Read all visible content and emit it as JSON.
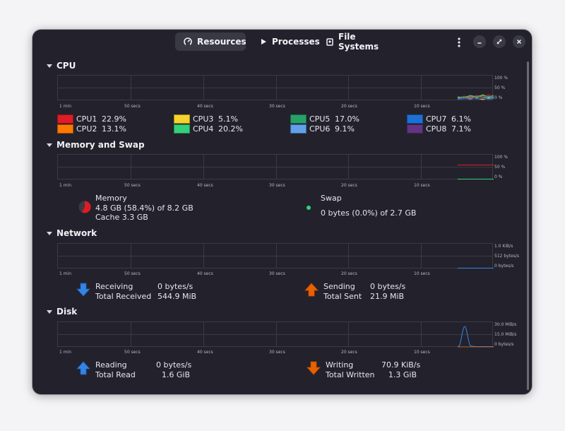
{
  "tabs": [
    {
      "label": "Resources",
      "icon": "gauge-icon",
      "active": true
    },
    {
      "label": "Processes",
      "icon": "play-icon",
      "active": false
    },
    {
      "label": "File Systems",
      "icon": "disk-icon",
      "active": false
    }
  ],
  "graph_time_labels": [
    "1 min",
    "50 secs",
    "40 secs",
    "30 secs",
    "20 secs",
    "10 secs"
  ],
  "cpu": {
    "title": "CPU",
    "y_labels": [
      "100 %",
      "50 %",
      "0 %"
    ],
    "cores": [
      {
        "name": "CPU1",
        "value": "22.9%",
        "color": "#e01b24"
      },
      {
        "name": "CPU2",
        "value": "13.1%",
        "color": "#ff7800"
      },
      {
        "name": "CPU3",
        "value": "5.1%",
        "color": "#f6d32d"
      },
      {
        "name": "CPU4",
        "value": "20.2%",
        "color": "#33d17a"
      },
      {
        "name": "CPU5",
        "value": "17.0%",
        "color": "#26a269"
      },
      {
        "name": "CPU6",
        "value": "9.1%",
        "color": "#62a0ea"
      },
      {
        "name": "CPU7",
        "value": "6.1%",
        "color": "#1c71d8"
      },
      {
        "name": "CPU8",
        "value": "7.1%",
        "color": "#613583"
      }
    ]
  },
  "memory": {
    "title": "Memory and Swap",
    "y_labels": [
      "100 %",
      "50 %",
      "0 %"
    ],
    "memory_label": "Memory",
    "memory_usage": "4.8 GB (58.4%) of 8.2 GB",
    "cache": "Cache 3.3 GB",
    "memory_color": "#e01b24",
    "memory_fraction": 0.584,
    "swap_label": "Swap",
    "swap_usage": "0 bytes (0.0%) of 2.7 GB",
    "swap_color": "#33d17a"
  },
  "network": {
    "title": "Network",
    "y_labels": [
      "1.0 KiB/s",
      "512 bytes/s",
      "0 bytes/s"
    ],
    "receiving_label": "Receiving",
    "receiving_value": "0 bytes/s",
    "total_received_label": "Total Received",
    "total_received_value": "544.9 MiB",
    "sending_label": "Sending",
    "sending_value": "0 bytes/s",
    "total_sent_label": "Total Sent",
    "total_sent_value": "21.9 MiB",
    "receive_color": "#3584e4",
    "send_color": "#e66100"
  },
  "disk": {
    "title": "Disk",
    "y_labels": [
      "30.0 MiB/s",
      "15.0 MiB/s",
      "0 bytes/s"
    ],
    "reading_label": "Reading",
    "reading_value": "0 bytes/s",
    "total_read_label": "Total Read",
    "total_read_value": "1.6 GiB",
    "writing_label": "Writing",
    "writing_value": "70.9 KiB/s",
    "total_written_label": "Total Written",
    "total_written_value": "1.3 GiB",
    "read_color": "#3584e4",
    "write_color": "#e66100"
  }
}
